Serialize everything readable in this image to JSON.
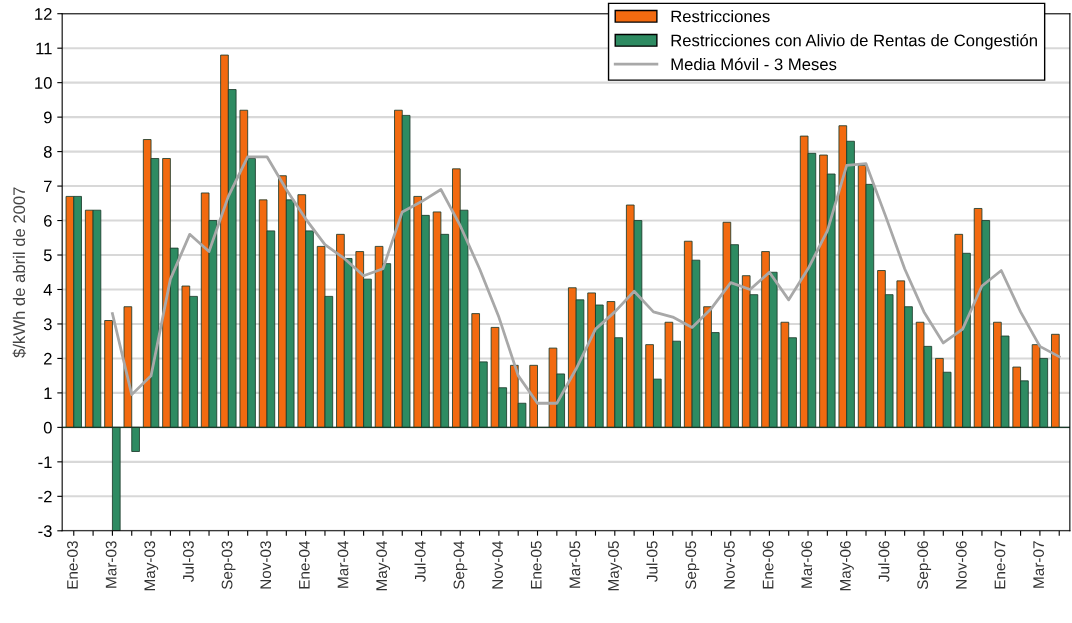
{
  "chart_data": {
    "type": "bar",
    "ylabel": "$/kWh de abril de 2007",
    "categories": [
      "Ene-03",
      null,
      "Mar-03",
      null,
      "May-03",
      null,
      "Jul-03",
      null,
      "Sep-03",
      null,
      "Nov-03",
      null,
      "Ene-04",
      null,
      "Mar-04",
      null,
      "May-04",
      null,
      "Jul-04",
      null,
      "Sep-04",
      null,
      "Nov-04",
      null,
      "Ene-05",
      null,
      "Mar-05",
      null,
      "May-05",
      null,
      "Jul-05",
      null,
      "Sep-05",
      null,
      "Nov-05",
      null,
      "Ene-06",
      null,
      "Mar-06",
      null,
      "May-06",
      null,
      "Jul-06",
      null,
      "Sep-06",
      null,
      "Nov-06",
      null,
      "Ene-07",
      null,
      "Mar-07",
      null
    ],
    "series": [
      {
        "name": "Restricciones",
        "color": "#f26a10",
        "values": [
          6.7,
          6.3,
          3.1,
          3.5,
          8.35,
          7.8,
          4.1,
          6.8,
          10.8,
          9.2,
          6.6,
          7.3,
          6.75,
          5.25,
          5.6,
          5.1,
          5.25,
          9.2,
          6.7,
          6.25,
          7.5,
          3.3,
          2.9,
          1.8,
          1.8,
          2.3,
          4.05,
          3.9,
          3.65,
          6.45,
          2.4,
          3.05,
          5.4,
          3.5,
          5.95,
          4.4,
          5.1,
          3.05,
          8.45,
          7.9,
          8.75,
          7.6,
          4.55,
          4.25,
          3.05,
          2.0,
          5.6,
          6.35,
          3.05,
          1.75,
          2.4,
          2.7
        ]
      },
      {
        "name": "Restricciones con Alivio de Rentas de Congestión",
        "color": "#2e8b62",
        "values": [
          6.7,
          6.3,
          -3.0,
          -0.7,
          7.8,
          5.2,
          3.8,
          6.0,
          9.8,
          7.8,
          5.7,
          6.6,
          5.7,
          3.8,
          4.9,
          4.3,
          4.75,
          9.05,
          6.15,
          5.6,
          6.3,
          1.9,
          1.15,
          0.7,
          null,
          1.55,
          3.7,
          3.55,
          2.6,
          6.0,
          1.4,
          2.5,
          4.85,
          2.75,
          5.3,
          3.85,
          4.5,
          2.6,
          7.95,
          7.35,
          8.3,
          7.05,
          3.85,
          3.5,
          2.35,
          1.6,
          5.05,
          6.0,
          2.65,
          1.35,
          2.0,
          null
        ]
      },
      {
        "name": "Media Móvil - 3 Meses",
        "type": "line",
        "color": "#a8a8a8",
        "values": [
          null,
          null,
          3.3,
          0.95,
          1.5,
          4.3,
          5.6,
          5.1,
          6.7,
          7.85,
          7.85,
          6.9,
          6.05,
          5.3,
          4.9,
          4.4,
          4.6,
          6.25,
          6.55,
          6.9,
          5.85,
          4.6,
          3.2,
          1.5,
          0.7,
          0.7,
          1.7,
          2.85,
          3.35,
          3.95,
          3.35,
          3.2,
          2.9,
          3.45,
          4.2,
          4.0,
          4.5,
          3.7,
          4.6,
          5.7,
          7.6,
          7.65,
          6.15,
          4.6,
          3.35,
          2.45,
          2.85,
          4.1,
          4.55,
          3.35,
          2.35,
          2.05
        ]
      }
    ],
    "ylim": [
      -3,
      12
    ],
    "yticks": [
      -3,
      -2,
      -1,
      0,
      1,
      2,
      3,
      4,
      5,
      6,
      7,
      8,
      9,
      10,
      11,
      12
    ],
    "grid": "y",
    "legend": "top right",
    "marker": "none",
    "line_style": "solid"
  }
}
